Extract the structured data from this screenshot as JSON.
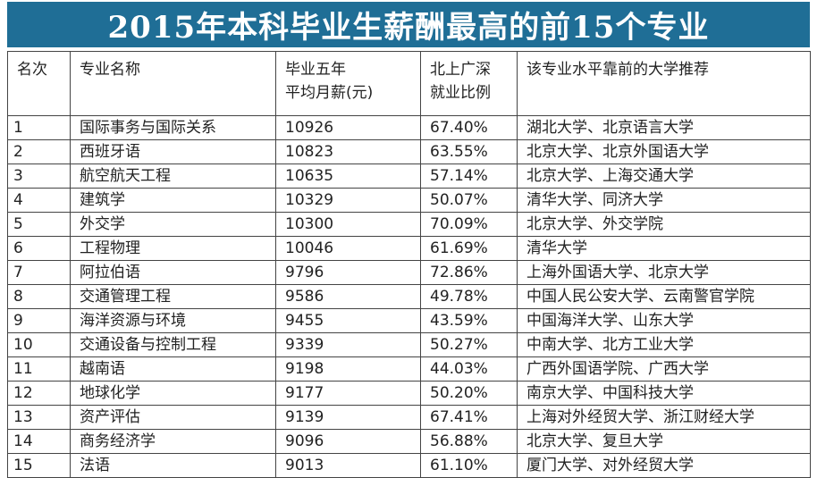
{
  "title": "2015年本科毕业生薪酬最高的前15个专业",
  "headers": {
    "rank": "名次",
    "major": "专业名称",
    "salary_line1": "毕业五年",
    "salary_line2": "平均月薪(元)",
    "ratio_line1": "北上广深",
    "ratio_line2": "就业比例",
    "universities": "该专业水平靠前的大学推荐"
  },
  "rows": [
    {
      "rank": "1",
      "major": "国际事务与国际关系",
      "salary": "10926",
      "ratio": "67.40%",
      "universities": "湖北大学、北京语言大学"
    },
    {
      "rank": "2",
      "major": "西班牙语",
      "salary": "10823",
      "ratio": "63.55%",
      "universities": "北京大学、北京外国语大学"
    },
    {
      "rank": "3",
      "major": "航空航天工程",
      "salary": "10635",
      "ratio": "57.14%",
      "universities": "北京大学、上海交通大学"
    },
    {
      "rank": "4",
      "major": "建筑学",
      "salary": "10329",
      "ratio": "50.07%",
      "universities": "清华大学、同济大学"
    },
    {
      "rank": "5",
      "major": "外交学",
      "salary": "10300",
      "ratio": "70.09%",
      "universities": "北京大学、外交学院"
    },
    {
      "rank": "6",
      "major": "工程物理",
      "salary": "10046",
      "ratio": "61.69%",
      "universities": "清华大学"
    },
    {
      "rank": "7",
      "major": "阿拉伯语",
      "salary": "9796",
      "ratio": "72.86%",
      "universities": "上海外国语大学、北京大学"
    },
    {
      "rank": "8",
      "major": "交通管理工程",
      "salary": "9586",
      "ratio": "49.78%",
      "universities": "中国人民公安大学、云南警官学院"
    },
    {
      "rank": "9",
      "major": "海洋资源与环境",
      "salary": "9455",
      "ratio": "43.59%",
      "universities": "中国海洋大学、山东大学"
    },
    {
      "rank": "10",
      "major": "交通设备与控制工程",
      "salary": "9339",
      "ratio": "50.27%",
      "universities": "中南大学、北方工业大学"
    },
    {
      "rank": "11",
      "major": "越南语",
      "salary": "9198",
      "ratio": "44.03%",
      "universities": "广西外国语学院、广西大学"
    },
    {
      "rank": "12",
      "major": "地球化学",
      "salary": "9177",
      "ratio": "50.20%",
      "universities": "南京大学、中国科技大学"
    },
    {
      "rank": "13",
      "major": "资产评估",
      "salary": "9139",
      "ratio": "67.41%",
      "universities": "上海对外经贸大学、浙江财经大学"
    },
    {
      "rank": "14",
      "major": "商务经济学",
      "salary": "9096",
      "ratio": "56.88%",
      "universities": "北京大学、复旦大学"
    },
    {
      "rank": "15",
      "major": "法语",
      "salary": "9013",
      "ratio": "61.10%",
      "universities": "厦门大学、对外经贸大学"
    }
  ]
}
